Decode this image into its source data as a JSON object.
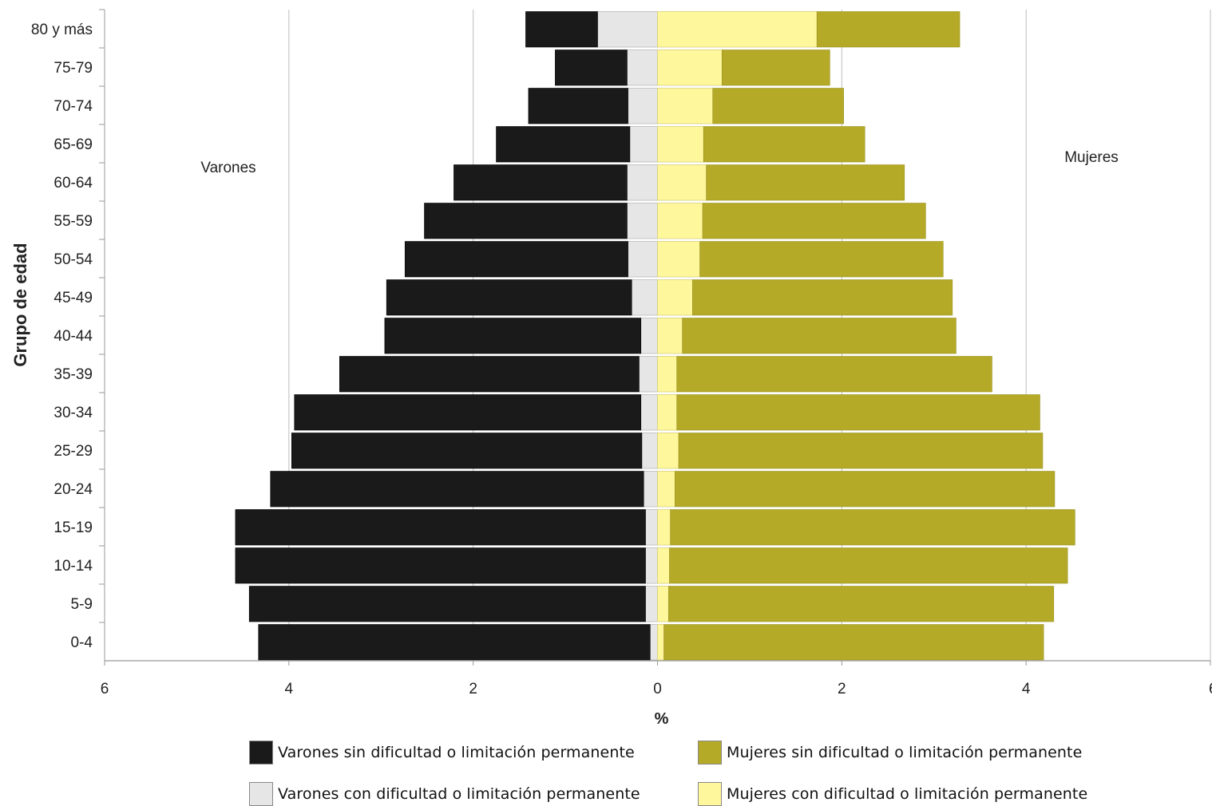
{
  "chart_data": {
    "type": "bar",
    "orientation": "horizontal",
    "ylabel": "Grupo de edad",
    "xlabel": "%",
    "xlim": [
      -6,
      6
    ],
    "x_ticks": [
      -6,
      -4,
      -2,
      0,
      2,
      4,
      6
    ],
    "x_tick_labels": [
      "6",
      "4",
      "2",
      "0",
      "2",
      "4",
      "6"
    ],
    "annotations": {
      "left": "Varones",
      "right": "Mujeres"
    },
    "categories": [
      "80 y más",
      "75-79",
      "70-74",
      "65-69",
      "60-64",
      "55-59",
      "50-54",
      "45-49",
      "40-44",
      "35-39",
      "30-34",
      "25-29",
      "20-24",
      "15-19",
      "10-14",
      "5-9",
      "0-4"
    ],
    "series": [
      {
        "name": "Varones sin dificultad o limitación permanente",
        "color": "#1a1a1a",
        "side": "left",
        "values": [
          0.78,
          0.78,
          1.08,
          1.45,
          1.88,
          2.2,
          2.42,
          2.66,
          2.78,
          3.25,
          3.76,
          3.8,
          4.05,
          4.45,
          4.45,
          4.3,
          4.25
        ]
      },
      {
        "name": "Varones con dificultad o limitación permanente",
        "color": "#e6e6e6",
        "side": "left",
        "values": [
          0.65,
          0.33,
          0.32,
          0.3,
          0.33,
          0.33,
          0.32,
          0.28,
          0.18,
          0.2,
          0.18,
          0.17,
          0.15,
          0.13,
          0.13,
          0.13,
          0.08
        ]
      },
      {
        "name": "Mujeres sin dificultad o limitación permanente",
        "color": "#b4aa28",
        "side": "right",
        "values": [
          1.55,
          1.17,
          1.42,
          1.75,
          2.15,
          2.42,
          2.64,
          2.82,
          2.97,
          3.42,
          3.94,
          3.95,
          4.12,
          4.39,
          4.32,
          4.18,
          4.12
        ]
      },
      {
        "name": "Mujeres con dificultad o limitación permanente",
        "color": "#fff79b",
        "side": "right",
        "values": [
          1.73,
          0.7,
          0.6,
          0.5,
          0.53,
          0.49,
          0.46,
          0.38,
          0.27,
          0.21,
          0.21,
          0.23,
          0.19,
          0.14,
          0.13,
          0.12,
          0.07
        ]
      }
    ],
    "grid": true,
    "legend_position": "bottom"
  },
  "legend": [
    {
      "label": "Varones sin dificultad o limitación permanente",
      "color": "#1a1a1a"
    },
    {
      "label": "Mujeres sin dificultad o limitación permanente",
      "color": "#b4aa28"
    },
    {
      "label": "Varones con dificultad o limitación permanente",
      "color": "#e6e6e6"
    },
    {
      "label": "Mujeres con dificultad o limitación permanente",
      "color": "#fff79b"
    }
  ]
}
